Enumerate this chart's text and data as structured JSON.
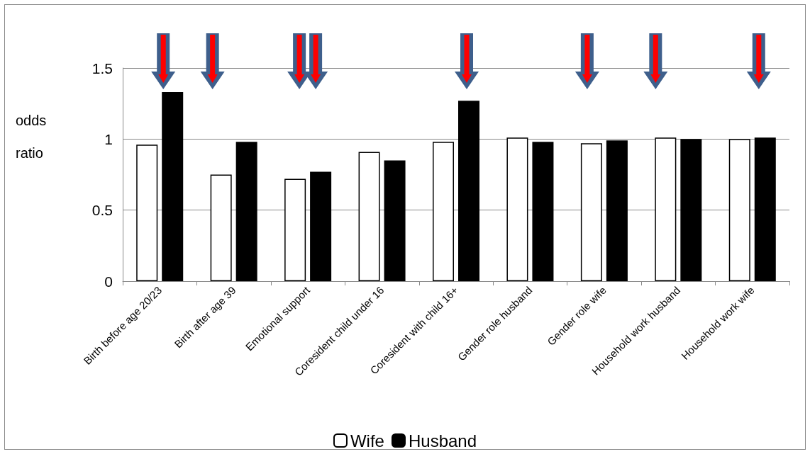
{
  "chart_data": {
    "type": "bar",
    "ylabel": "odds\n\nratio",
    "categories": [
      "Birth before age 20/23",
      "Birth after age 39",
      "Emotional support",
      "Coresident child under 16",
      "Coresident with child 16+",
      "Gender role husband",
      "Gender role wife",
      "Household work husband",
      "Household work wife"
    ],
    "series": [
      {
        "name": "Wife",
        "color": "#ffffff",
        "values": [
          0.96,
          0.75,
          0.72,
          0.91,
          0.98,
          1.01,
          0.97,
          1.01,
          1.0
        ]
      },
      {
        "name": "Husband",
        "color": "#000000",
        "values": [
          1.33,
          0.98,
          0.77,
          0.85,
          1.27,
          0.98,
          0.99,
          1.0,
          1.01
        ]
      }
    ],
    "ylim": [
      0,
      1.5
    ],
    "yticks": [
      0,
      0.5,
      1,
      1.5
    ],
    "grid": "y",
    "legend": "bottom"
  }
}
